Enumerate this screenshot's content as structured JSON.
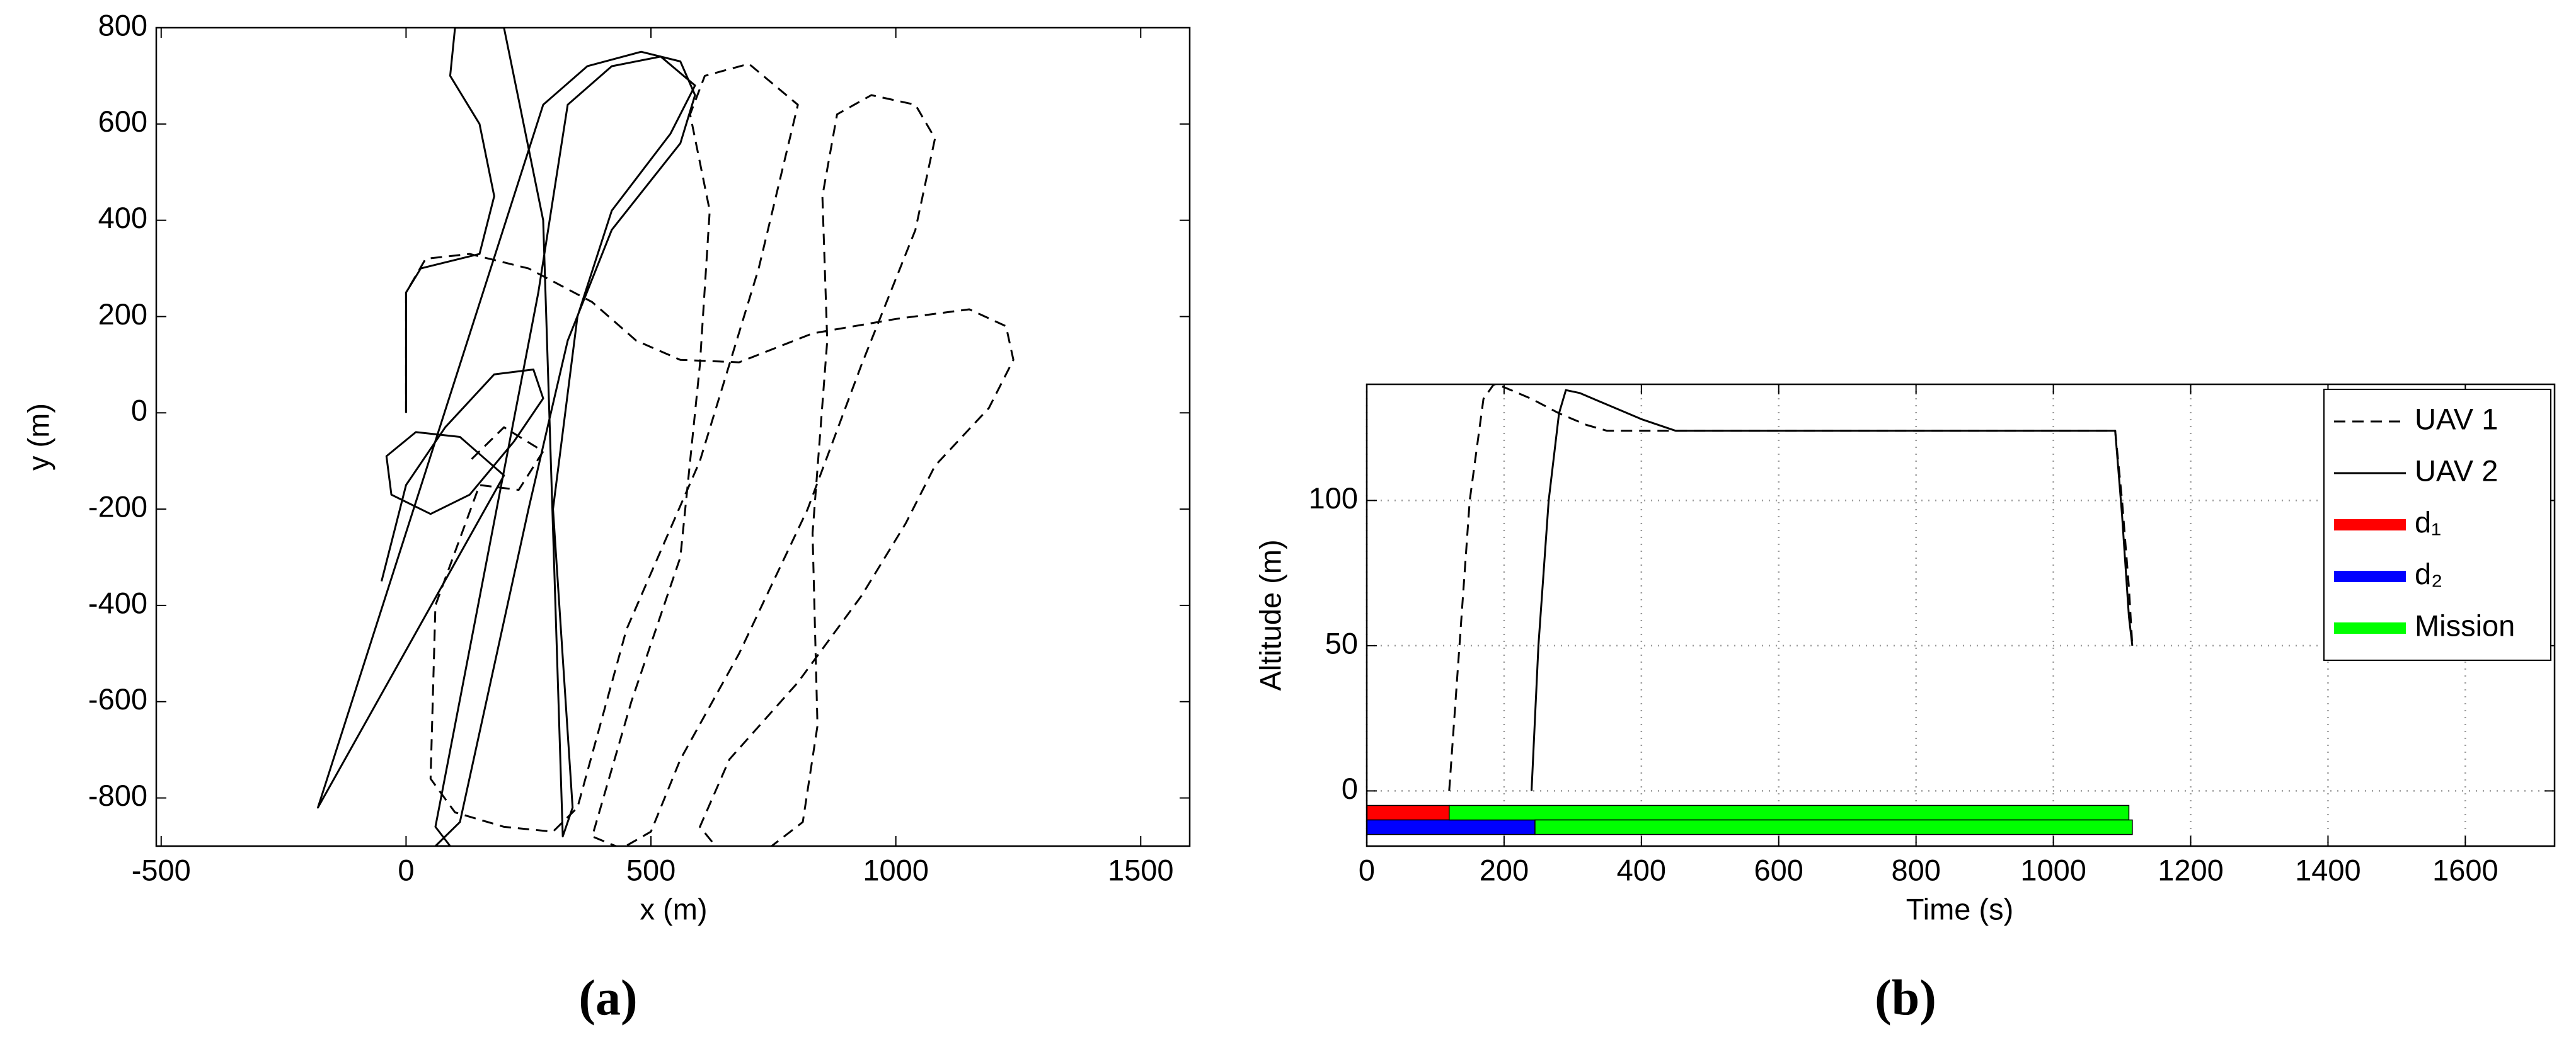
{
  "chart_data": [
    {
      "type": "line",
      "label": "(a)",
      "xlabel": "x (m)",
      "ylabel": "y (m)",
      "xlim": [
        -510,
        1600
      ],
      "ylim": [
        -900,
        800
      ],
      "xticks": [
        -500,
        0,
        500,
        1000,
        1500
      ],
      "yticks": [
        -800,
        -600,
        -400,
        -200,
        0,
        200,
        400,
        600,
        800
      ],
      "grid": false,
      "series": [
        {
          "style": "dashed",
          "color": "#000000",
          "x": [
            0,
            0,
            40,
            130,
            250,
            380,
            470,
            560,
            680,
            830,
            1000,
            1150,
            1225,
            1240,
            1190,
            1080,
            1020,
            930,
            800,
            660,
            600,
            640,
            740,
            810,
            840,
            830,
            860,
            850,
            880,
            950,
            1040,
            1080,
            1040,
            930,
            820,
            680,
            560,
            500,
            440,
            380,
            460,
            560,
            600,
            620,
            580,
            610,
            700,
            800,
            720,
            600,
            450,
            350,
            300,
            200,
            100,
            50,
            60,
            150,
            230,
            280,
            200,
            130
          ],
          "values": [
            0,
            250,
            320,
            330,
            300,
            230,
            150,
            110,
            105,
            165,
            195,
            215,
            180,
            110,
            10,
            -110,
            -230,
            -380,
            -560,
            -720,
            -860,
            -910,
            -905,
            -850,
            -650,
            -250,
            150,
            450,
            620,
            660,
            640,
            570,
            380,
            100,
            -200,
            -500,
            -720,
            -870,
            -905,
            -880,
            -600,
            -300,
            100,
            420,
            620,
            700,
            725,
            640,
            300,
            -100,
            -450,
            -820,
            -870,
            -860,
            -830,
            -760,
            -400,
            -150,
            -160,
            -80,
            -30,
            -100
          ]
        },
        {
          "style": "solid",
          "color": "#000000",
          "x": [
            -50,
            0,
            80,
            180,
            260,
            280,
            220,
            130,
            50,
            -30,
            -40,
            20,
            110,
            200,
            -180,
            280,
            370,
            480,
            560,
            590,
            560,
            420,
            330,
            250,
            110,
            60,
            90,
            60,
            270,
            330,
            420,
            520,
            590,
            540,
            420,
            350,
            300,
            340,
            320,
            280,
            230,
            200,
            100,
            90,
            150,
            180,
            150,
            30,
            0,
            0
          ],
          "values": [
            -350,
            -150,
            -30,
            80,
            90,
            30,
            -60,
            -170,
            -210,
            -170,
            -90,
            -40,
            -50,
            -130,
            -820,
            640,
            720,
            750,
            730,
            660,
            560,
            380,
            150,
            -200,
            -850,
            -900,
            -900,
            -860,
            250,
            640,
            720,
            740,
            680,
            580,
            420,
            200,
            -200,
            -820,
            -880,
            400,
            650,
            800,
            800,
            700,
            600,
            450,
            330,
            300,
            250,
            0
          ]
        }
      ]
    },
    {
      "type": "line",
      "label": "(b)",
      "xlabel": "Time (s)",
      "ylabel": "Altitude (m)",
      "xlim": [
        0,
        1730
      ],
      "ylim": [
        -19,
        140
      ],
      "xticks": [
        0,
        200,
        400,
        600,
        800,
        1000,
        1200,
        1400,
        1600
      ],
      "yticks": [
        0,
        50,
        100
      ],
      "grid": true,
      "legend": "upper right",
      "series": [
        {
          "name": "UAV 1",
          "style": "dashed",
          "color": "#000000",
          "x": [
            120,
            135,
            150,
            170,
            185,
            200,
            240,
            280,
            320,
            350,
            400,
            600,
            800,
            1000,
            1090,
            1100,
            1110,
            1115
          ],
          "values": [
            0,
            50,
            100,
            135,
            140,
            139,
            135,
            130,
            126,
            124,
            124,
            124,
            124,
            124,
            124,
            100,
            70,
            50
          ]
        },
        {
          "name": "UAV 2",
          "style": "solid",
          "color": "#000000",
          "x": [
            240,
            250,
            265,
            280,
            290,
            310,
            350,
            400,
            450,
            600,
            800,
            1000,
            1090,
            1100,
            1110,
            1115
          ],
          "values": [
            0,
            50,
            100,
            130,
            138,
            137,
            133,
            128,
            124,
            124,
            124,
            124,
            124,
            95,
            60,
            50
          ]
        }
      ],
      "tasks": [
        {
          "name": "d₁",
          "color": "#ff0000",
          "bars": [
            {
              "start": 0,
              "end": 120,
              "y": [
                -5,
                -10
              ]
            }
          ]
        },
        {
          "name": "d₂",
          "color": "#0000ff",
          "bars": [
            {
              "start": 0,
              "end": 245,
              "y": [
                -10,
                -15
              ]
            }
          ]
        },
        {
          "name": "Mission",
          "color": "#00ff00",
          "bars": [
            {
              "start": 120,
              "end": 1110,
              "y": [
                -5,
                -10
              ]
            },
            {
              "start": 245,
              "end": 1115,
              "y": [
                -10,
                -15
              ]
            }
          ]
        }
      ]
    }
  ]
}
